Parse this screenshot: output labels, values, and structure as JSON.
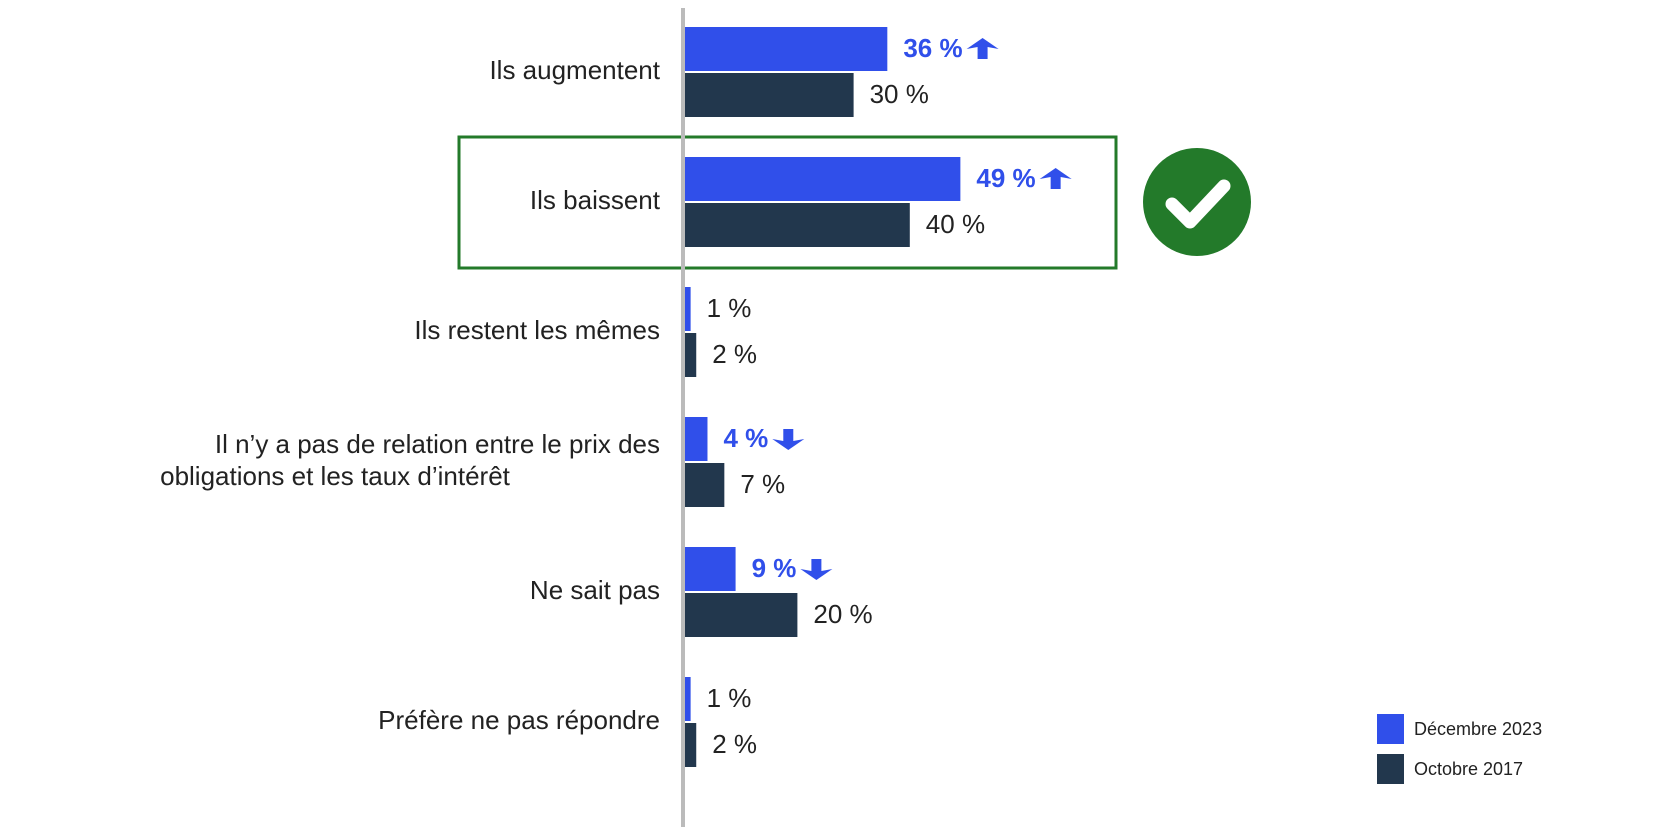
{
  "chart_data": {
    "type": "bar",
    "orientation": "horizontal",
    "categories": [
      "Ils augmentent",
      "Ils baissent",
      "Ils restent les mêmes",
      "Il n’y a pas de relation entre le prix des obligations et les taux d’intérêt",
      "Ne sait pas",
      "Préfère ne pas répondre"
    ],
    "series": [
      {
        "name": "Décembre 2023",
        "color": "#304fea",
        "values": [
          36,
          49,
          1,
          4,
          9,
          1
        ],
        "value_labels": [
          "36 %",
          "49 %",
          "1 %",
          "4 %",
          "9 %",
          "1 %"
        ],
        "changes": [
          "up",
          "up",
          null,
          "down",
          "down",
          null
        ]
      },
      {
        "name": "Octobre 2017",
        "color": "#22374d",
        "values": [
          30,
          40,
          2,
          7,
          20,
          2
        ],
        "value_labels": [
          "30 %",
          "40 %",
          "2 %",
          "7 %",
          "20 %",
          "2 %"
        ]
      }
    ]
  }
}
